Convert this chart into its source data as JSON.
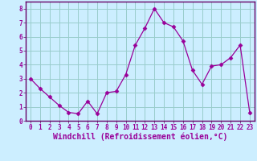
{
  "x": [
    0,
    1,
    2,
    3,
    4,
    5,
    6,
    7,
    8,
    9,
    10,
    11,
    12,
    13,
    14,
    15,
    16,
    17,
    18,
    19,
    20,
    21,
    22,
    23
  ],
  "y": [
    3.0,
    2.3,
    1.7,
    1.1,
    0.6,
    0.5,
    1.4,
    0.5,
    2.0,
    2.1,
    3.3,
    5.4,
    6.6,
    8.0,
    7.0,
    6.7,
    5.7,
    3.6,
    2.6,
    3.9,
    4.0,
    4.5,
    5.4,
    0.6
  ],
  "line_color": "#990099",
  "marker": "D",
  "marker_size": 2.5,
  "bg_color": "#cceeff",
  "grid_color": "#99cccc",
  "xlabel": "Windchill (Refroidissement éolien,°C)",
  "ylabel": "",
  "xlim": [
    -0.5,
    23.5
  ],
  "ylim": [
    0,
    8.5
  ],
  "xticks": [
    0,
    1,
    2,
    3,
    4,
    5,
    6,
    7,
    8,
    9,
    10,
    11,
    12,
    13,
    14,
    15,
    16,
    17,
    18,
    19,
    20,
    21,
    22,
    23
  ],
  "yticks": [
    0,
    1,
    2,
    3,
    4,
    5,
    6,
    7,
    8
  ],
  "tick_label_fontsize": 5.5,
  "xlabel_fontsize": 7.0,
  "spine_color": "#660066"
}
